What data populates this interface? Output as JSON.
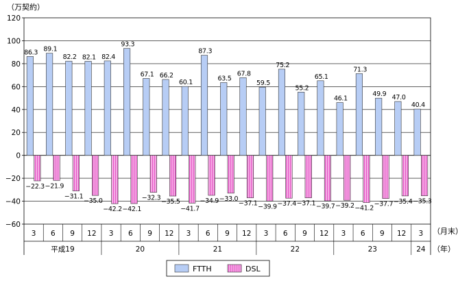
{
  "chart_data": {
    "type": "bar",
    "unit_label": "（万契約）",
    "x_unit_label": "（月末）",
    "year_unit_label": "（年）",
    "ylim": [
      -60,
      120
    ],
    "yticks": [
      -60,
      -40,
      -20,
      0,
      20,
      40,
      60,
      80,
      100,
      120
    ],
    "grid": true,
    "legend_position": "bottom-center",
    "categories": [
      "3",
      "6",
      "9",
      "12",
      "3",
      "6",
      "9",
      "12",
      "3",
      "6",
      "9",
      "12",
      "3",
      "6",
      "9",
      "12",
      "3",
      "6",
      "9",
      "12",
      "3"
    ],
    "year_groups": [
      {
        "label": "平成19",
        "count": 4
      },
      {
        "label": "20",
        "count": 4
      },
      {
        "label": "21",
        "count": 4
      },
      {
        "label": "22",
        "count": 4
      },
      {
        "label": "23",
        "count": 4
      },
      {
        "label": "24",
        "count": 1
      }
    ],
    "series": [
      {
        "name": "FTTH",
        "color": "#b7cdf5",
        "values": [
          86.3,
          89.1,
          82.2,
          82.1,
          82.4,
          93.3,
          67.1,
          66.2,
          60.1,
          87.3,
          63.5,
          67.8,
          59.5,
          75.2,
          55.2,
          65.1,
          46.1,
          71.3,
          49.9,
          47.0,
          40.4
        ],
        "labels": [
          "86.3",
          "89.1",
          "82.2",
          "82.1",
          "82.4",
          "93.3",
          "67.1",
          "66.2",
          "60.1",
          "87.3",
          "63.5",
          "67.8",
          "59.5",
          "75.2",
          "55.2",
          "65.1",
          "46.1",
          "71.3",
          "49.9",
          "47.0",
          "40.4"
        ]
      },
      {
        "name": "DSL",
        "color": "#f59be0",
        "values": [
          -22.3,
          -21.9,
          -31.1,
          -35.0,
          -42.2,
          -42.1,
          -32.3,
          -35.5,
          -41.7,
          -34.9,
          -33.0,
          -37.1,
          -39.9,
          -37.4,
          -37.1,
          -39.7,
          -39.2,
          -41.2,
          -37.7,
          -35.4,
          -35.3
        ],
        "labels": [
          "−22.3",
          "−21.9",
          "−31.1",
          "−35.0",
          "−42.2",
          "−42.1",
          "−32.3",
          "−35.5",
          "−41.7",
          "−34.9",
          "−33.0",
          "−37.1",
          "−39.9",
          "−37.4",
          "−37.1",
          "−39.7",
          "−39.2",
          "−41.2",
          "−37.7",
          "−35.4",
          "−35.3"
        ]
      }
    ]
  }
}
